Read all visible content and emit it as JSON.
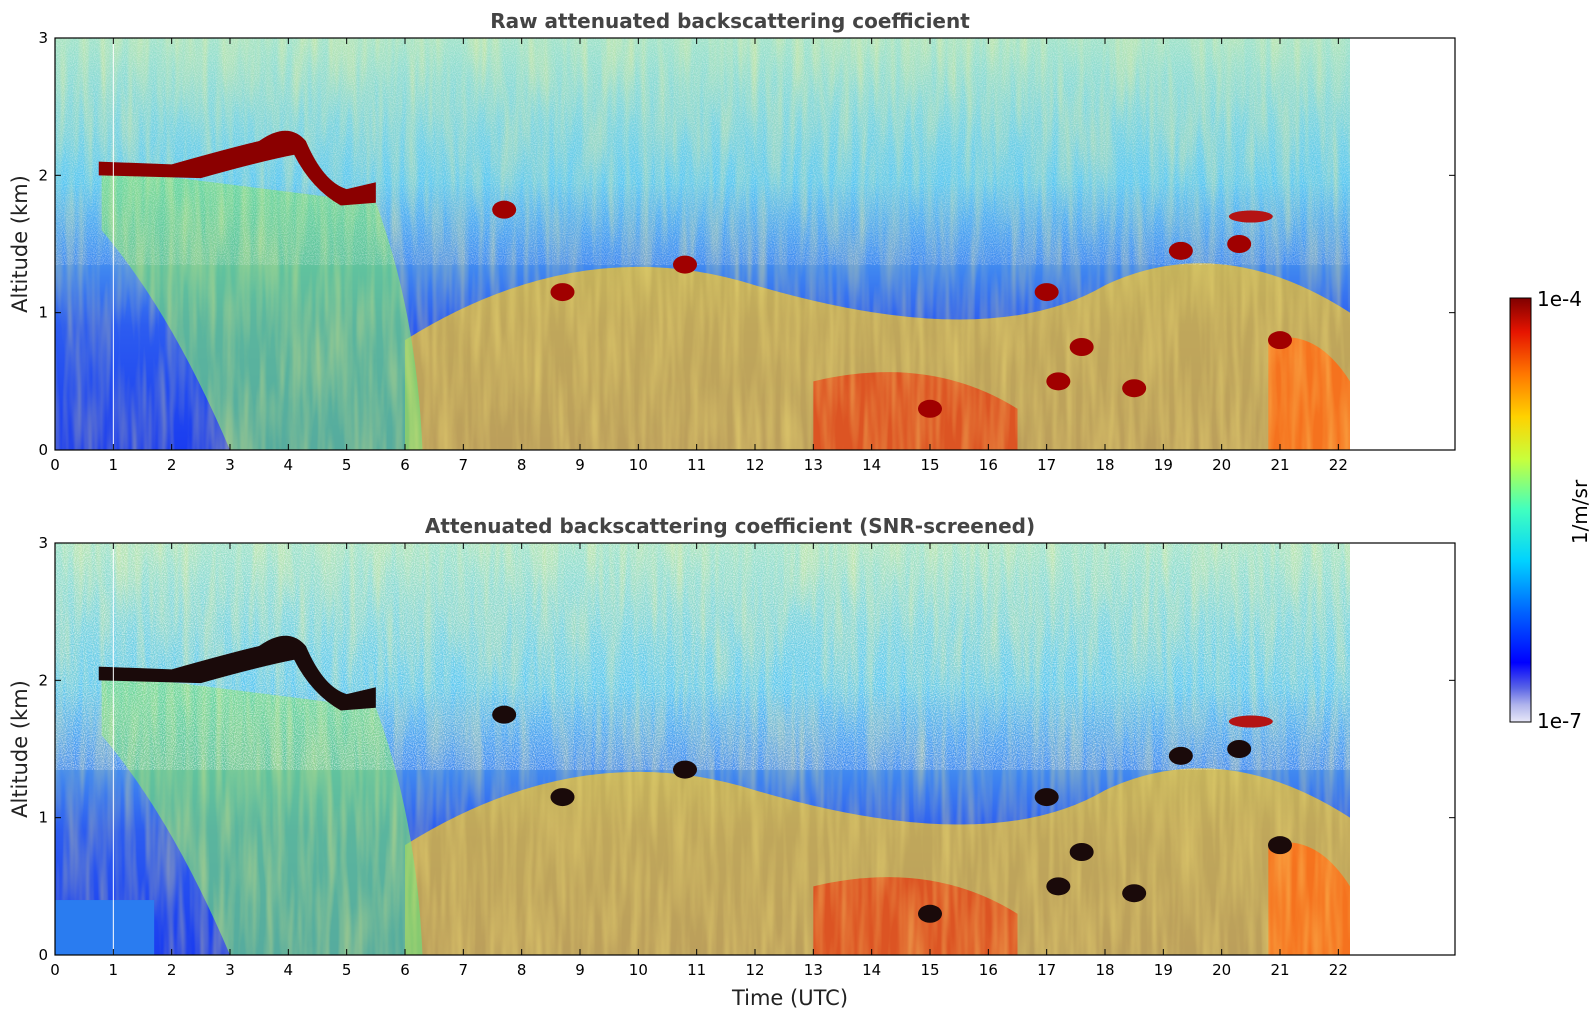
{
  "chart_data": [
    {
      "type": "heatmap",
      "title": "Raw attenuated backscattering coefficient",
      "xlabel": "",
      "ylabel": "Altitude (km)",
      "xlim": [
        0,
        24
      ],
      "ylim": [
        0,
        3
      ],
      "x_ticks": [
        "0",
        "1",
        "2",
        "3",
        "4",
        "5",
        "6",
        "7",
        "8",
        "9",
        "10",
        "11",
        "12",
        "13",
        "14",
        "15",
        "16",
        "17",
        "18",
        "19",
        "20",
        "21",
        "22"
      ],
      "y_ticks": [
        "0",
        "1",
        "2",
        "3"
      ],
      "data_coverage_x": [
        0,
        22.2
      ],
      "features": [
        {
          "name": "cloud layer",
          "x": [
            0.75,
            4.2
          ],
          "y_range": [
            2.05,
            2.35
          ]
        },
        {
          "name": "cloud layer",
          "x": [
            4.2,
            5.5
          ],
          "y_range": [
            1.8,
            2.1
          ]
        },
        {
          "name": "boundary layer aerosol",
          "x": [
            6,
            22.2
          ],
          "y_range": [
            0,
            1.5
          ]
        }
      ],
      "scale": "log",
      "colormap": "jet"
    },
    {
      "type": "heatmap",
      "title": "Attenuated backscattering coefficient (SNR-screened)",
      "xlabel": "Time (UTC)",
      "ylabel": "Altitude (km)",
      "xlim": [
        0,
        24
      ],
      "ylim": [
        0,
        3
      ],
      "x_ticks": [
        "0",
        "1",
        "2",
        "3",
        "4",
        "5",
        "6",
        "7",
        "8",
        "9",
        "10",
        "11",
        "12",
        "13",
        "14",
        "15",
        "16",
        "17",
        "18",
        "19",
        "20",
        "21",
        "22"
      ],
      "y_ticks": [
        "0",
        "1",
        "2",
        "3"
      ],
      "data_coverage_x": [
        0,
        22.2
      ],
      "scale": "log",
      "colormap": "jet"
    }
  ],
  "colorbar": {
    "max_label": "1e-4",
    "min_label": "1e-7",
    "unit_label": "1/m/sr"
  }
}
